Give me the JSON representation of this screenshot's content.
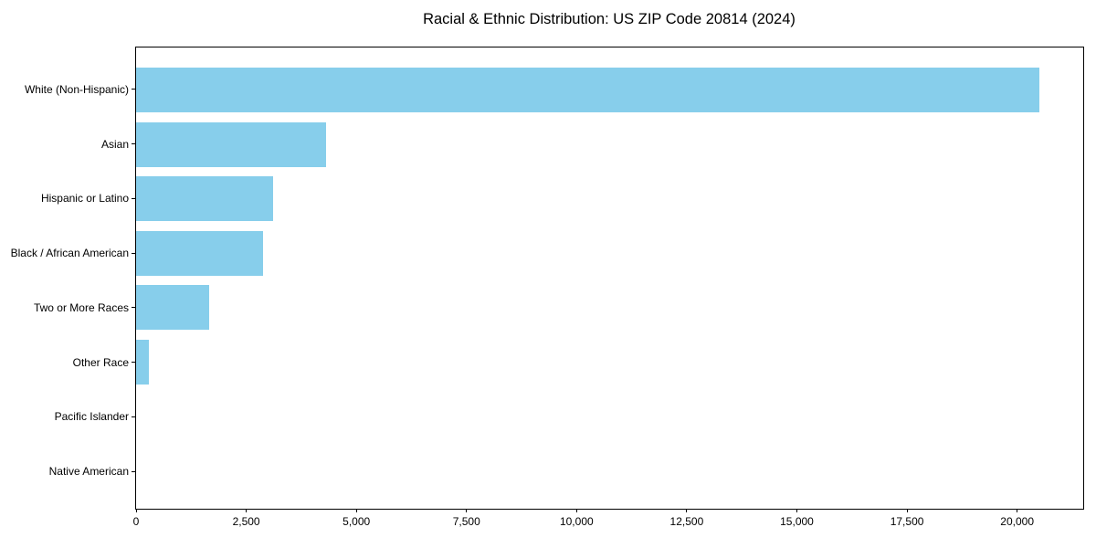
{
  "chart_data": {
    "type": "bar",
    "orientation": "horizontal",
    "title": "Racial & Ethnic Distribution: US ZIP Code 20814 (2024)",
    "categories": [
      "White (Non-Hispanic)",
      "Asian",
      "Hispanic or Latino",
      "Black / African American",
      "Two or More Races",
      "Other Race",
      "Pacific Islander",
      "Native American"
    ],
    "values": [
      20500,
      4310,
      3100,
      2890,
      1650,
      290,
      0,
      0
    ],
    "xlabel": "",
    "ylabel": "",
    "xlim": [
      0,
      21500
    ],
    "xticks": [
      0,
      2500,
      5000,
      7500,
      10000,
      12500,
      15000,
      17500,
      20000
    ],
    "xtick_labels": [
      "0",
      "2,500",
      "5,000",
      "7,500",
      "10,000",
      "12,500",
      "15,000",
      "17,500",
      "20,000"
    ],
    "bar_color": "#87CEEB",
    "axis_color": "#000000",
    "background_color": "#ffffff",
    "grid": false,
    "legend": null
  }
}
